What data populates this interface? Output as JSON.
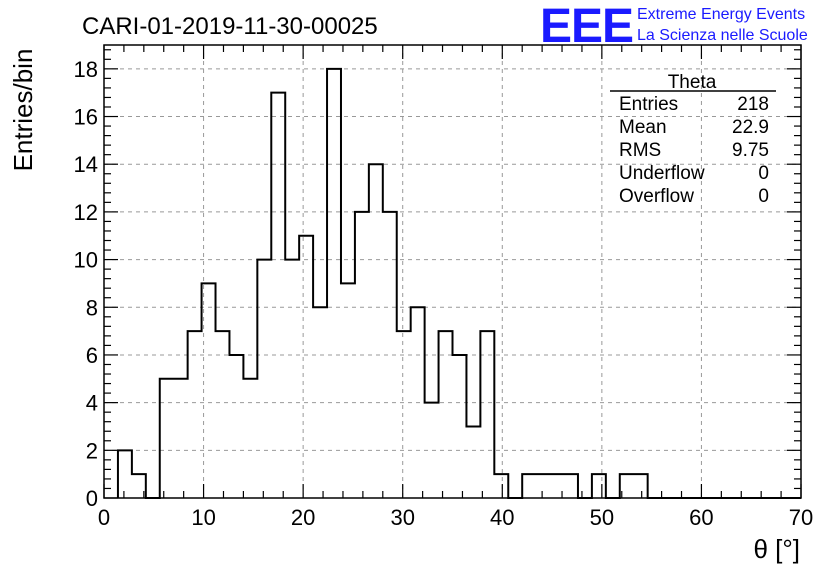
{
  "chart_data": {
    "type": "bar",
    "title": "CARI-01-2019-11-30-00025",
    "xlabel": "θ [°]",
    "ylabel": "Entries/bin",
    "xlim": [
      0,
      70
    ],
    "ylim": [
      0,
      19
    ],
    "grid": true,
    "bin_width": 1.4,
    "bin_start": 1.4,
    "values": [
      2,
      1,
      0,
      5,
      5,
      7,
      9,
      7,
      6,
      5,
      10,
      17,
      10,
      11,
      8,
      18,
      9,
      12,
      14,
      12,
      7,
      8,
      4,
      7,
      6,
      3,
      7,
      1,
      0,
      1,
      1,
      1,
      1,
      0,
      1,
      0,
      1,
      1,
      0,
      0,
      0,
      0,
      0,
      0,
      0,
      0,
      0,
      0,
      0
    ],
    "x_ticks": [
      0,
      10,
      20,
      30,
      40,
      50,
      60,
      70
    ],
    "y_ticks": [
      0,
      2,
      4,
      6,
      8,
      10,
      12,
      14,
      16,
      18
    ],
    "stats": {
      "name": "Theta",
      "rows": [
        {
          "label": "Entries",
          "value": "218"
        },
        {
          "label": "Mean",
          "value": "22.9"
        },
        {
          "label": "RMS",
          "value": "9.75"
        },
        {
          "label": "Underflow",
          "value": "0"
        },
        {
          "label": "Overflow",
          "value": "0"
        }
      ]
    }
  },
  "logo": {
    "mark": "EEE",
    "line1": "Extreme Energy Events",
    "line2": "La Scienza nelle Scuole",
    "color": "#1a1aff"
  }
}
